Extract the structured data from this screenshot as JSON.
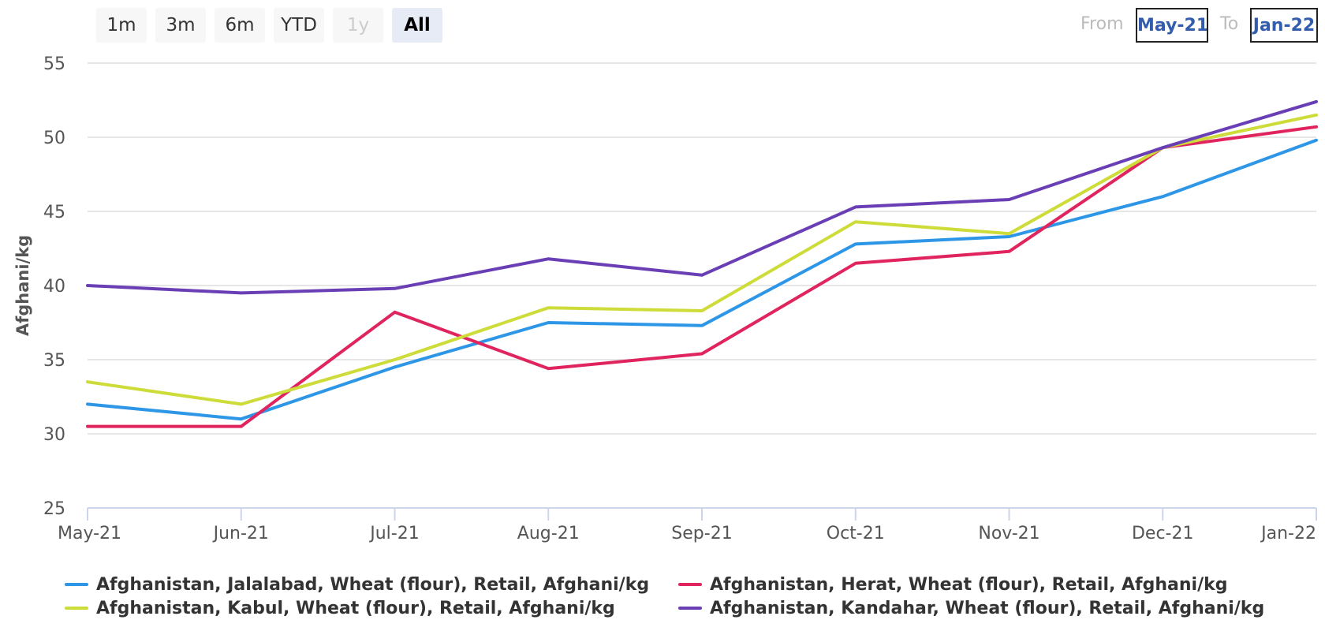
{
  "range_selector": {
    "buttons": [
      {
        "label": "1m",
        "state": "normal"
      },
      {
        "label": "3m",
        "state": "normal"
      },
      {
        "label": "6m",
        "state": "normal"
      },
      {
        "label": "YTD",
        "state": "normal"
      },
      {
        "label": "1y",
        "state": "disabled"
      },
      {
        "label": "All",
        "state": "selected"
      }
    ],
    "from_label": "From",
    "from_value": "May-21",
    "to_label": "To",
    "to_value": "Jan-22"
  },
  "chart_data": {
    "type": "line",
    "title": "",
    "xlabel": "",
    "ylabel": "Afghani/kg",
    "categories": [
      "May-21",
      "Jun-21",
      "Jul-21",
      "Aug-21",
      "Sep-21",
      "Oct-21",
      "Nov-21",
      "Dec-21",
      "Jan-22"
    ],
    "yticks": [
      25,
      30,
      35,
      40,
      45,
      50,
      55
    ],
    "ylim": [
      25,
      55
    ],
    "grid": true,
    "legend_position": "bottom",
    "series": [
      {
        "name": "Afghanistan, Jalalabad, Wheat (flour), Retail, Afghani/kg",
        "color": "#2e96e6",
        "values": [
          32.0,
          31.0,
          34.5,
          37.5,
          37.3,
          42.8,
          43.3,
          46.0,
          49.8
        ]
      },
      {
        "name": "Afghanistan, Herat, Wheat (flour), Retail, Afghani/kg",
        "color": "#e0245e",
        "values": [
          30.5,
          30.5,
          38.2,
          34.4,
          35.4,
          41.5,
          42.3,
          49.3,
          50.7
        ]
      },
      {
        "name": "Afghanistan, Kabul, Wheat (flour), Retail, Afghani/kg",
        "color": "#cddc39",
        "values": [
          33.5,
          32.0,
          35.0,
          38.5,
          38.3,
          44.3,
          43.5,
          49.3,
          51.5
        ]
      },
      {
        "name": "Afghanistan, Kandahar, Wheat (flour), Retail, Afghani/kg",
        "color": "#6a3fb5",
        "values": [
          40.0,
          39.5,
          39.8,
          41.8,
          40.7,
          45.3,
          45.8,
          49.3,
          52.4
        ]
      }
    ]
  }
}
